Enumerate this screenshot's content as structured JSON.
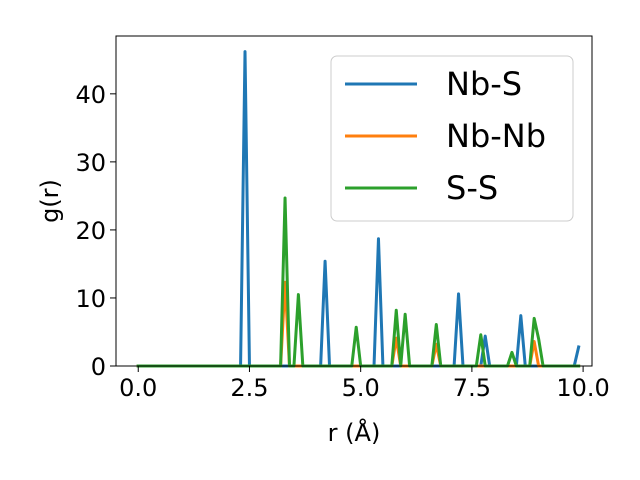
{
  "chart_data": {
    "type": "line",
    "xlabel": "r (Å)",
    "ylabel": "g(r)",
    "xlim": [
      -0.5,
      10.2
    ],
    "ylim": [
      0,
      48.5
    ],
    "xticks": [
      "0.0",
      "2.5",
      "5.0",
      "7.5",
      "10.0"
    ],
    "yticks": [
      "0",
      "10",
      "20",
      "30",
      "40"
    ],
    "grid": false,
    "legend_position": "top-right",
    "x": [
      0.0,
      0.1,
      0.2,
      0.3,
      0.4,
      0.5,
      0.6,
      0.7,
      0.8,
      0.9,
      1.0,
      1.1,
      1.2,
      1.3,
      1.4,
      1.5,
      1.6,
      1.7,
      1.8,
      1.9,
      2.0,
      2.1,
      2.2,
      2.3,
      2.4,
      2.5,
      2.6,
      2.7,
      2.8,
      2.9,
      3.0,
      3.1,
      3.2,
      3.3,
      3.4,
      3.5,
      3.6,
      3.7,
      3.8,
      3.9,
      4.0,
      4.1,
      4.2,
      4.3,
      4.4,
      4.5,
      4.6,
      4.7,
      4.8,
      4.9,
      5.0,
      5.1,
      5.2,
      5.3,
      5.4,
      5.5,
      5.6,
      5.7,
      5.8,
      5.9,
      6.0,
      6.1,
      6.2,
      6.3,
      6.4,
      6.5,
      6.6,
      6.7,
      6.8,
      6.9,
      7.0,
      7.1,
      7.2,
      7.3,
      7.4,
      7.5,
      7.6,
      7.7,
      7.8,
      7.9,
      8.0,
      8.1,
      8.2,
      8.3,
      8.4,
      8.5,
      8.6,
      8.7,
      8.8,
      8.9,
      9.0,
      9.1,
      9.2,
      9.3,
      9.4,
      9.5,
      9.6,
      9.7,
      9.8,
      9.9
    ],
    "series": [
      {
        "name": "Nb-S",
        "color": "#1f77b4",
        "values": [
          0,
          0,
          0,
          0,
          0,
          0,
          0,
          0,
          0,
          0,
          0,
          0,
          0,
          0,
          0,
          0,
          0,
          0,
          0,
          0,
          0,
          0,
          0,
          0,
          46.2,
          0,
          0,
          0,
          0,
          0,
          0,
          0,
          0,
          0,
          0,
          0,
          0,
          0,
          0,
          0,
          0,
          0,
          15.4,
          0,
          0,
          0,
          0,
          0,
          0,
          0,
          0,
          0,
          0,
          0,
          18.7,
          0,
          0,
          0,
          0,
          0,
          0,
          0,
          0,
          0,
          0,
          0,
          0,
          0,
          0,
          0,
          0,
          0,
          10.6,
          0,
          0,
          0,
          0,
          0,
          4.4,
          0,
          0,
          0,
          0,
          0,
          0,
          0,
          7.4,
          0,
          0,
          0,
          0,
          0,
          0,
          0,
          0,
          0,
          0,
          0,
          0,
          2.8
        ]
      },
      {
        "name": "Nb-Nb",
        "color": "#ff7f0e",
        "values": [
          0,
          0,
          0,
          0,
          0,
          0,
          0,
          0,
          0,
          0,
          0,
          0,
          0,
          0,
          0,
          0,
          0,
          0,
          0,
          0,
          0,
          0,
          0,
          0,
          0,
          0,
          0,
          0,
          0,
          0,
          0,
          0,
          0,
          12.3,
          0,
          0,
          0,
          0,
          0,
          0,
          0,
          0,
          0,
          0,
          0,
          0,
          0,
          0,
          0,
          0,
          0,
          0,
          0,
          0,
          0,
          0,
          0,
          0,
          4.1,
          0,
          0,
          0,
          0,
          0,
          0,
          0,
          0,
          3.2,
          0,
          0,
          0,
          0,
          0,
          0,
          0,
          0,
          0,
          0,
          0,
          0,
          0,
          0,
          0,
          0,
          0,
          0,
          0,
          0,
          0,
          3.6,
          0,
          0,
          0,
          0,
          0,
          0,
          0,
          0,
          0,
          0
        ]
      },
      {
        "name": "S-S",
        "color": "#2ca02c",
        "values": [
          0,
          0,
          0,
          0,
          0,
          0,
          0,
          0,
          0,
          0,
          0,
          0,
          0,
          0,
          0,
          0,
          0,
          0,
          0,
          0,
          0,
          0,
          0,
          0,
          0,
          0,
          0,
          0,
          0,
          0,
          0,
          0,
          0,
          24.7,
          0,
          0,
          10.5,
          0,
          0,
          0,
          0,
          0,
          0,
          0,
          0,
          0,
          0,
          0,
          0,
          5.7,
          0,
          0,
          0,
          0,
          0,
          0,
          0,
          0,
          8.2,
          0,
          7.6,
          0,
          0,
          0,
          0,
          0,
          0,
          6.1,
          0,
          0,
          0,
          0,
          0,
          0,
          0,
          0,
          0,
          4.6,
          0,
          0,
          0,
          0,
          0,
          0,
          2.0,
          0,
          0,
          0,
          0,
          7.0,
          4.0,
          0,
          0,
          0,
          0,
          0,
          0,
          0,
          0,
          0
        ]
      }
    ]
  }
}
